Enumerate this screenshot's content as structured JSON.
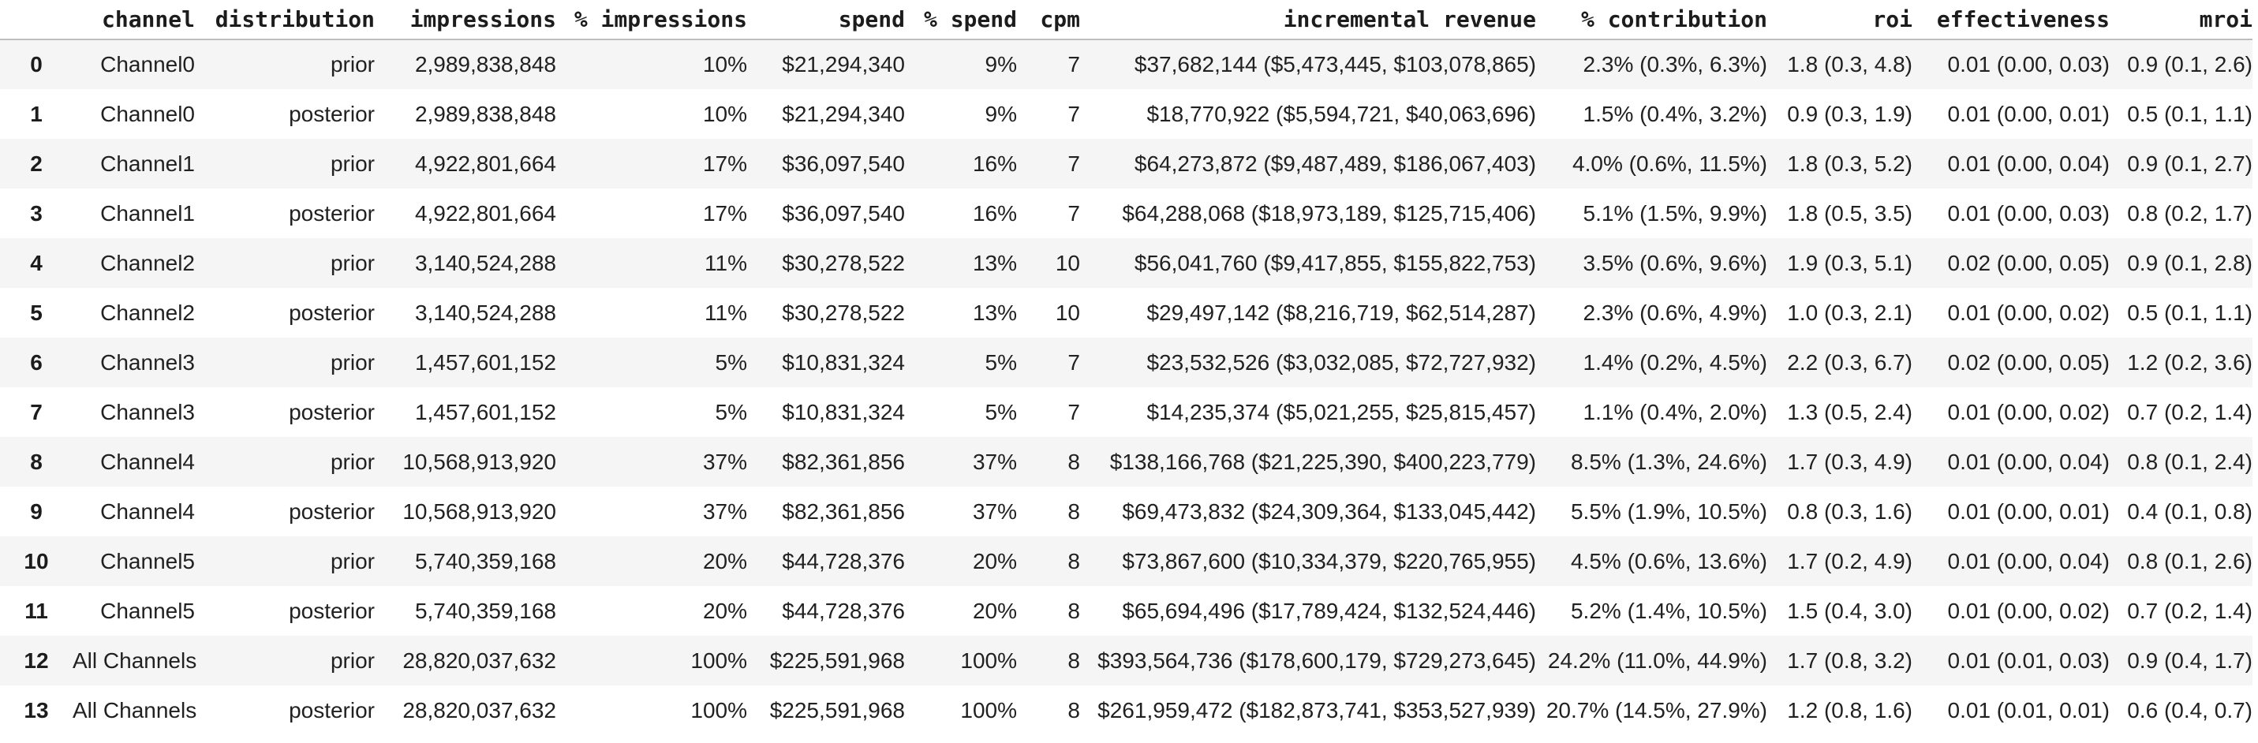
{
  "table": {
    "index_header": "",
    "columns": [
      "channel",
      "distribution",
      "impressions",
      "% impressions",
      "spend",
      "% spend",
      "cpm",
      "incremental revenue",
      "% contribution",
      "roi",
      "effectiveness",
      "mroi"
    ],
    "rows": [
      {
        "index": "0",
        "cells": [
          "Channel0",
          "prior",
          "2,989,838,848",
          "10%",
          "$21,294,340",
          "9%",
          "7",
          "$37,682,144 ($5,473,445, $103,078,865)",
          "2.3% (0.3%, 6.3%)",
          "1.8 (0.3, 4.8)",
          "0.01 (0.00, 0.03)",
          "0.9 (0.1, 2.6)"
        ]
      },
      {
        "index": "1",
        "cells": [
          "Channel0",
          "posterior",
          "2,989,838,848",
          "10%",
          "$21,294,340",
          "9%",
          "7",
          "$18,770,922 ($5,594,721, $40,063,696)",
          "1.5% (0.4%, 3.2%)",
          "0.9 (0.3, 1.9)",
          "0.01 (0.00, 0.01)",
          "0.5 (0.1, 1.1)"
        ]
      },
      {
        "index": "2",
        "cells": [
          "Channel1",
          "prior",
          "4,922,801,664",
          "17%",
          "$36,097,540",
          "16%",
          "7",
          "$64,273,872 ($9,487,489, $186,067,403)",
          "4.0% (0.6%, 11.5%)",
          "1.8 (0.3, 5.2)",
          "0.01 (0.00, 0.04)",
          "0.9 (0.1, 2.7)"
        ]
      },
      {
        "index": "3",
        "cells": [
          "Channel1",
          "posterior",
          "4,922,801,664",
          "17%",
          "$36,097,540",
          "16%",
          "7",
          "$64,288,068 ($18,973,189, $125,715,406)",
          "5.1% (1.5%, 9.9%)",
          "1.8 (0.5, 3.5)",
          "0.01 (0.00, 0.03)",
          "0.8 (0.2, 1.7)"
        ]
      },
      {
        "index": "4",
        "cells": [
          "Channel2",
          "prior",
          "3,140,524,288",
          "11%",
          "$30,278,522",
          "13%",
          "10",
          "$56,041,760 ($9,417,855, $155,822,753)",
          "3.5% (0.6%, 9.6%)",
          "1.9 (0.3, 5.1)",
          "0.02 (0.00, 0.05)",
          "0.9 (0.1, 2.8)"
        ]
      },
      {
        "index": "5",
        "cells": [
          "Channel2",
          "posterior",
          "3,140,524,288",
          "11%",
          "$30,278,522",
          "13%",
          "10",
          "$29,497,142 ($8,216,719, $62,514,287)",
          "2.3% (0.6%, 4.9%)",
          "1.0 (0.3, 2.1)",
          "0.01 (0.00, 0.02)",
          "0.5 (0.1, 1.1)"
        ]
      },
      {
        "index": "6",
        "cells": [
          "Channel3",
          "prior",
          "1,457,601,152",
          "5%",
          "$10,831,324",
          "5%",
          "7",
          "$23,532,526 ($3,032,085, $72,727,932)",
          "1.4% (0.2%, 4.5%)",
          "2.2 (0.3, 6.7)",
          "0.02 (0.00, 0.05)",
          "1.2 (0.2, 3.6)"
        ]
      },
      {
        "index": "7",
        "cells": [
          "Channel3",
          "posterior",
          "1,457,601,152",
          "5%",
          "$10,831,324",
          "5%",
          "7",
          "$14,235,374 ($5,021,255, $25,815,457)",
          "1.1% (0.4%, 2.0%)",
          "1.3 (0.5, 2.4)",
          "0.01 (0.00, 0.02)",
          "0.7 (0.2, 1.4)"
        ]
      },
      {
        "index": "8",
        "cells": [
          "Channel4",
          "prior",
          "10,568,913,920",
          "37%",
          "$82,361,856",
          "37%",
          "8",
          "$138,166,768 ($21,225,390, $400,223,779)",
          "8.5% (1.3%, 24.6%)",
          "1.7 (0.3, 4.9)",
          "0.01 (0.00, 0.04)",
          "0.8 (0.1, 2.4)"
        ]
      },
      {
        "index": "9",
        "cells": [
          "Channel4",
          "posterior",
          "10,568,913,920",
          "37%",
          "$82,361,856",
          "37%",
          "8",
          "$69,473,832 ($24,309,364, $133,045,442)",
          "5.5% (1.9%, 10.5%)",
          "0.8 (0.3, 1.6)",
          "0.01 (0.00, 0.01)",
          "0.4 (0.1, 0.8)"
        ]
      },
      {
        "index": "10",
        "cells": [
          "Channel5",
          "prior",
          "5,740,359,168",
          "20%",
          "$44,728,376",
          "20%",
          "8",
          "$73,867,600 ($10,334,379, $220,765,955)",
          "4.5% (0.6%, 13.6%)",
          "1.7 (0.2, 4.9)",
          "0.01 (0.00, 0.04)",
          "0.8 (0.1, 2.6)"
        ]
      },
      {
        "index": "11",
        "cells": [
          "Channel5",
          "posterior",
          "5,740,359,168",
          "20%",
          "$44,728,376",
          "20%",
          "8",
          "$65,694,496 ($17,789,424, $132,524,446)",
          "5.2% (1.4%, 10.5%)",
          "1.5 (0.4, 3.0)",
          "0.01 (0.00, 0.02)",
          "0.7 (0.2, 1.4)"
        ]
      },
      {
        "index": "12",
        "cells": [
          "All Channels",
          "prior",
          "28,820,037,632",
          "100%",
          "$225,591,968",
          "100%",
          "8",
          "$393,564,736 ($178,600,179, $729,273,645)",
          "24.2% (11.0%, 44.9%)",
          "1.7 (0.8, 3.2)",
          "0.01 (0.01, 0.03)",
          "0.9 (0.4, 1.7)"
        ]
      },
      {
        "index": "13",
        "cells": [
          "All Channels",
          "posterior",
          "28,820,037,632",
          "100%",
          "$225,591,968",
          "100%",
          "8",
          "$261,959,472 ($182,873,741, $353,527,939)",
          "20.7% (14.5%, 27.9%)",
          "1.2 (0.8, 1.6)",
          "0.01 (0.01, 0.01)",
          "0.6 (0.4, 0.7)"
        ]
      }
    ]
  },
  "colors": {
    "row_band": "#f5f5f5",
    "header_border": "#bdbdbd",
    "text": "#212121"
  }
}
